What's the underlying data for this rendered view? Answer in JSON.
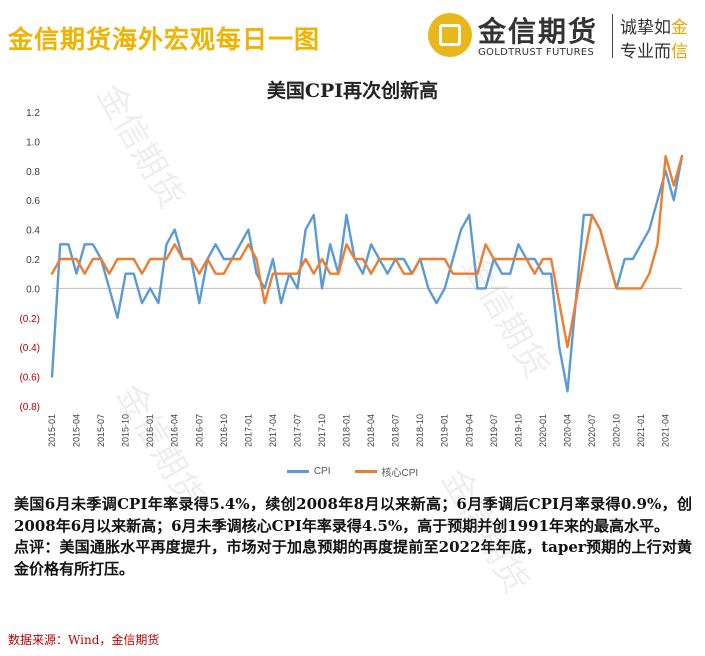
{
  "header": {
    "brand_title": "金信期货海外宏观每日一图",
    "logo_cn": "金信期货",
    "logo_en": "GOLDTRUST FUTURES",
    "slogan_line1_a": "诚挚如",
    "slogan_line1_b": "金",
    "slogan_line2_a": "专业而",
    "slogan_line2_b": "信"
  },
  "watermark": "金信期货",
  "colors": {
    "cpi": "#5B9BD5",
    "core": "#ED7D31",
    "brand_gold": "#f2b200",
    "source_red": "#c00000"
  },
  "chart_data": {
    "type": "line",
    "title": "美国CPI再次创新高",
    "xlabel": "",
    "ylabel": "",
    "ylim": [
      -0.8,
      1.2
    ],
    "ytick_values": [
      1.2,
      1.0,
      0.8,
      0.6,
      0.4,
      0.2,
      0.0,
      -0.2,
      -0.4,
      -0.6,
      -0.8
    ],
    "ytick_labels": [
      "1.2",
      "1.0",
      "0.8",
      "0.6",
      "0.4",
      "0.2",
      "0.0",
      "(0.2)",
      "(0.4)",
      "(0.6)",
      "(0.8)"
    ],
    "xtick_labels": [
      "2015-01",
      "2015-04",
      "2015-07",
      "2015-10",
      "2016-01",
      "2016-04",
      "2016-07",
      "2016-10",
      "2017-01",
      "2017-04",
      "2017-07",
      "2017-10",
      "2018-01",
      "2018-04",
      "2018-07",
      "2018-10",
      "2019-01",
      "2019-04",
      "2019-07",
      "2019-10",
      "2020-01",
      "2020-04",
      "2020-07",
      "2020-10",
      "2021-01",
      "2021-04"
    ],
    "xtick_step": 3,
    "grid": false,
    "legend_position": "bottom",
    "x": [
      "2015-01",
      "2015-02",
      "2015-03",
      "2015-04",
      "2015-05",
      "2015-06",
      "2015-07",
      "2015-08",
      "2015-09",
      "2015-10",
      "2015-11",
      "2015-12",
      "2016-01",
      "2016-02",
      "2016-03",
      "2016-04",
      "2016-05",
      "2016-06",
      "2016-07",
      "2016-08",
      "2016-09",
      "2016-10",
      "2016-11",
      "2016-12",
      "2017-01",
      "2017-02",
      "2017-03",
      "2017-04",
      "2017-05",
      "2017-06",
      "2017-07",
      "2017-08",
      "2017-09",
      "2017-10",
      "2017-11",
      "2017-12",
      "2018-01",
      "2018-02",
      "2018-03",
      "2018-04",
      "2018-05",
      "2018-06",
      "2018-07",
      "2018-08",
      "2018-09",
      "2018-10",
      "2018-11",
      "2018-12",
      "2019-01",
      "2019-02",
      "2019-03",
      "2019-04",
      "2019-05",
      "2019-06",
      "2019-07",
      "2019-08",
      "2019-09",
      "2019-10",
      "2019-11",
      "2019-12",
      "2020-01",
      "2020-02",
      "2020-03",
      "2020-04",
      "2020-05",
      "2020-06",
      "2020-07",
      "2020-08",
      "2020-09",
      "2020-10",
      "2020-11",
      "2020-12",
      "2021-01",
      "2021-02",
      "2021-03",
      "2021-04",
      "2021-05",
      "2021-06"
    ],
    "series": [
      {
        "name": "CPI",
        "values": [
          -0.6,
          0.3,
          0.3,
          0.1,
          0.3,
          0.3,
          0.2,
          0.0,
          -0.2,
          0.1,
          0.1,
          -0.1,
          0.0,
          -0.1,
          0.3,
          0.4,
          0.2,
          0.2,
          -0.1,
          0.2,
          0.3,
          0.2,
          0.2,
          0.3,
          0.4,
          0.1,
          0.0,
          0.2,
          -0.1,
          0.1,
          0.0,
          0.4,
          0.5,
          0.0,
          0.3,
          0.1,
          0.5,
          0.2,
          0.1,
          0.3,
          0.2,
          0.1,
          0.2,
          0.2,
          0.1,
          0.2,
          0.0,
          -0.1,
          0.0,
          0.2,
          0.4,
          0.5,
          0.0,
          0.0,
          0.2,
          0.1,
          0.1,
          0.3,
          0.2,
          0.2,
          0.1,
          0.1,
          -0.4,
          -0.7,
          -0.1,
          0.5,
          0.5,
          0.4,
          0.2,
          0.0,
          0.2,
          0.2,
          0.3,
          0.4,
          0.6,
          0.8,
          0.6,
          0.9
        ]
      },
      {
        "name": "核心CPI",
        "values": [
          0.1,
          0.2,
          0.2,
          0.2,
          0.1,
          0.2,
          0.2,
          0.1,
          0.2,
          0.2,
          0.2,
          0.1,
          0.2,
          0.2,
          0.2,
          0.3,
          0.2,
          0.2,
          0.1,
          0.2,
          0.1,
          0.1,
          0.2,
          0.2,
          0.3,
          0.2,
          -0.1,
          0.1,
          0.1,
          0.1,
          0.1,
          0.2,
          0.1,
          0.2,
          0.1,
          0.1,
          0.3,
          0.2,
          0.2,
          0.1,
          0.2,
          0.2,
          0.2,
          0.1,
          0.1,
          0.2,
          0.2,
          0.2,
          0.2,
          0.1,
          0.1,
          0.1,
          0.1,
          0.3,
          0.2,
          0.2,
          0.2,
          0.2,
          0.2,
          0.1,
          0.2,
          0.2,
          -0.1,
          -0.4,
          -0.1,
          0.2,
          0.5,
          0.4,
          0.2,
          0.0,
          0.0,
          0.0,
          0.0,
          0.1,
          0.3,
          0.9,
          0.7,
          0.9
        ]
      }
    ]
  },
  "description": "美国6月未季调CPI年率录得5.4%，续创2008年8月以来新高；6月季调后CPI月率录得0.9%，创2008年6月以来新高；6月未季调核心CPI年率录得4.5%，高于预期并创1991年来的最高水平。",
  "comment": "点评：美国通胀水平再度提升，市场对于加息预期的再度提前至2022年年底，taper预期的上行对黄金价格有所打压。",
  "source": "数据来源：Wind，金信期货"
}
